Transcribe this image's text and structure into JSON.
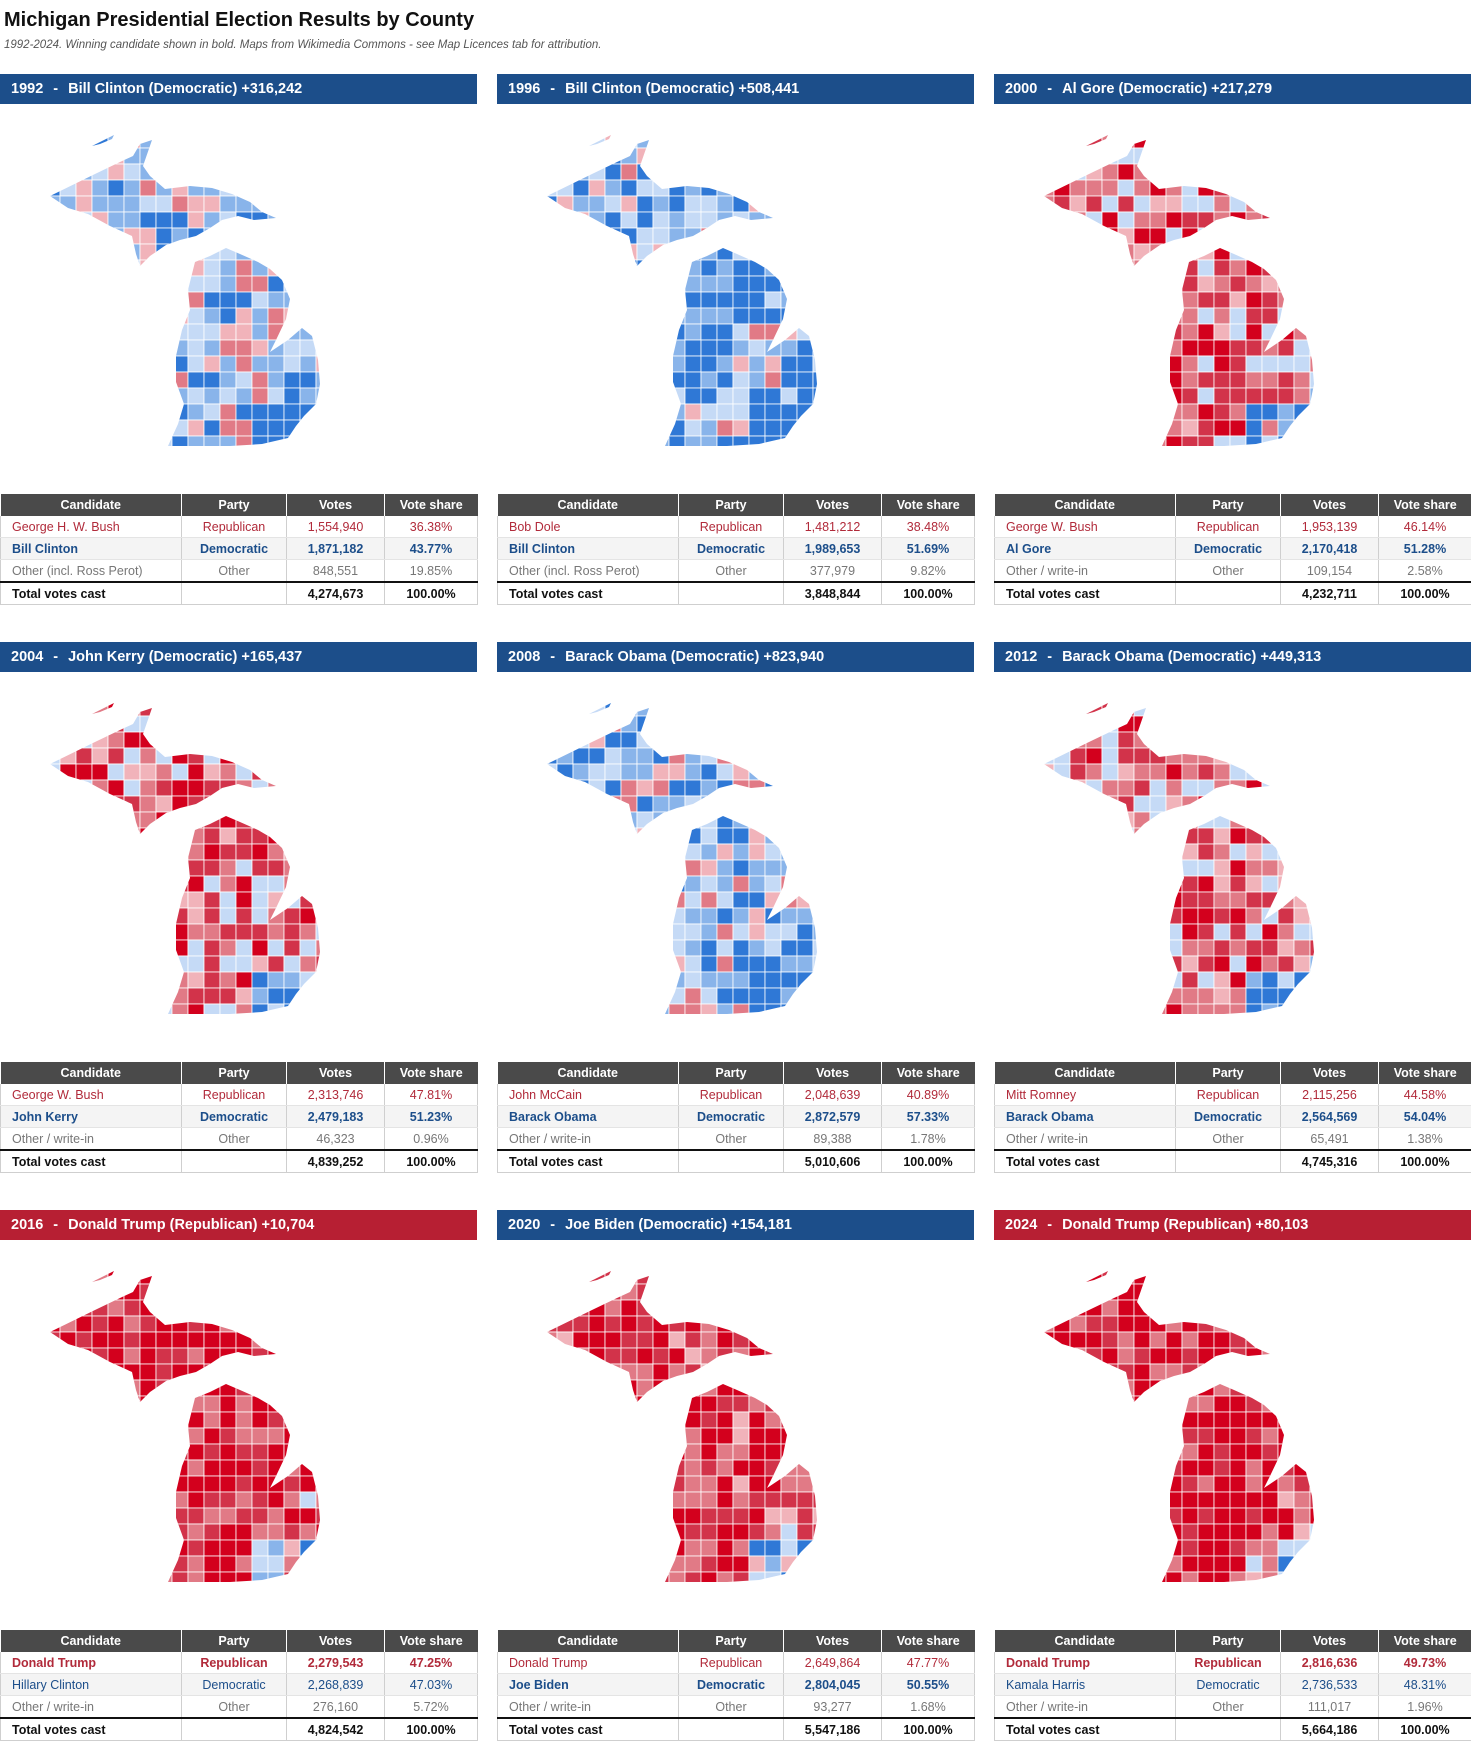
{
  "page": {
    "title": "Michigan Presidential Election Results by County",
    "subtitle": "1992-2024. Winning candidate shown in bold. Maps from Wikimedia Commons - see Map Licences tab for attribution."
  },
  "columns": [
    "Candidate",
    "Party",
    "Votes",
    "Vote share"
  ],
  "total_label": "Total votes cast",
  "colors": {
    "dem_banner": "#1c4e8a",
    "rep_banner": "#b71f33",
    "header_bg": "#4a4a4a",
    "rep_text": "#b12a3a",
    "dem_text": "#1c4e8a"
  },
  "elections": [
    {
      "year": "1992",
      "winner_party": "dem",
      "headline": "Bill Clinton (Democratic) +316,242",
      "map_bias": -0.25,
      "rows": [
        {
          "candidate": "George H. W. Bush",
          "party": "Republican",
          "votes": "1,554,940",
          "share": "36.38%",
          "type": "rep",
          "winner": false
        },
        {
          "candidate": "Bill Clinton",
          "party": "Democratic",
          "votes": "1,871,182",
          "share": "43.77%",
          "type": "dem",
          "winner": true
        },
        {
          "candidate": "Other (incl. Ross Perot)",
          "party": "Other",
          "votes": "848,551",
          "share": "19.85%",
          "type": "other",
          "winner": false
        }
      ],
      "total_votes": "4,274,673",
      "total_share": "100.00%"
    },
    {
      "year": "1996",
      "winner_party": "dem",
      "headline": "Bill Clinton (Democratic) +508,441",
      "map_bias": -0.45,
      "rows": [
        {
          "candidate": "Bob Dole",
          "party": "Republican",
          "votes": "1,481,212",
          "share": "38.48%",
          "type": "rep",
          "winner": false
        },
        {
          "candidate": "Bill Clinton",
          "party": "Democratic",
          "votes": "1,989,653",
          "share": "51.69%",
          "type": "dem",
          "winner": true
        },
        {
          "candidate": "Other (incl. Ross Perot)",
          "party": "Other",
          "votes": "377,979",
          "share": "9.82%",
          "type": "other",
          "winner": false
        }
      ],
      "total_votes": "3,848,844",
      "total_share": "100.00%"
    },
    {
      "year": "2000",
      "winner_party": "dem",
      "headline": "Al Gore (Democratic) +217,279",
      "map_bias": 0.45,
      "rows": [
        {
          "candidate": "George W. Bush",
          "party": "Republican",
          "votes": "1,953,139",
          "share": "46.14%",
          "type": "rep",
          "winner": false
        },
        {
          "candidate": "Al Gore",
          "party": "Democratic",
          "votes": "2,170,418",
          "share": "51.28%",
          "type": "dem",
          "winner": true
        },
        {
          "candidate": "Other / write-in",
          "party": "Other",
          "votes": "109,154",
          "share": "2.58%",
          "type": "other",
          "winner": false
        }
      ],
      "total_votes": "4,232,711",
      "total_share": "100.00%"
    },
    {
      "year": "2004",
      "winner_party": "dem",
      "headline": "John Kerry (Democratic) +165,437",
      "map_bias": 0.4,
      "rows": [
        {
          "candidate": "George W. Bush",
          "party": "Republican",
          "votes": "2,313,746",
          "share": "47.81%",
          "type": "rep",
          "winner": false
        },
        {
          "candidate": "John Kerry",
          "party": "Democratic",
          "votes": "2,479,183",
          "share": "51.23%",
          "type": "dem",
          "winner": true
        },
        {
          "candidate": "Other / write-in",
          "party": "Other",
          "votes": "46,323",
          "share": "0.96%",
          "type": "other",
          "winner": false
        }
      ],
      "total_votes": "4,839,252",
      "total_share": "100.00%"
    },
    {
      "year": "2008",
      "winner_party": "dem",
      "headline": "Barack Obama (Democratic) +823,940",
      "map_bias": -0.35,
      "rows": [
        {
          "candidate": "John McCain",
          "party": "Republican",
          "votes": "2,048,639",
          "share": "40.89%",
          "type": "rep",
          "winner": false
        },
        {
          "candidate": "Barack Obama",
          "party": "Democratic",
          "votes": "2,872,579",
          "share": "57.33%",
          "type": "dem",
          "winner": true
        },
        {
          "candidate": "Other / write-in",
          "party": "Other",
          "votes": "89,388",
          "share": "1.78%",
          "type": "other",
          "winner": false
        }
      ],
      "total_votes": "5,010,606",
      "total_share": "100.00%"
    },
    {
      "year": "2012",
      "winner_party": "dem",
      "headline": "Barack Obama (Democratic) +449,313",
      "map_bias": 0.4,
      "rows": [
        {
          "candidate": "Mitt Romney",
          "party": "Republican",
          "votes": "2,115,256",
          "share": "44.58%",
          "type": "rep",
          "winner": false
        },
        {
          "candidate": "Barack Obama",
          "party": "Democratic",
          "votes": "2,564,569",
          "share": "54.04%",
          "type": "dem",
          "winner": true
        },
        {
          "candidate": "Other / write-in",
          "party": "Other",
          "votes": "65,491",
          "share": "1.38%",
          "type": "other",
          "winner": false
        }
      ],
      "total_votes": "4,745,316",
      "total_share": "100.00%"
    },
    {
      "year": "2016",
      "winner_party": "rep",
      "headline": "Donald Trump (Republican) +10,704",
      "map_bias": 0.8,
      "rows": [
        {
          "candidate": "Donald Trump",
          "party": "Republican",
          "votes": "2,279,543",
          "share": "47.25%",
          "type": "rep",
          "winner": true
        },
        {
          "candidate": "Hillary Clinton",
          "party": "Democratic",
          "votes": "2,268,839",
          "share": "47.03%",
          "type": "dem",
          "winner": false
        },
        {
          "candidate": "Other / write-in",
          "party": "Other",
          "votes": "276,160",
          "share": "5.72%",
          "type": "other",
          "winner": false
        }
      ],
      "total_votes": "4,824,542",
      "total_share": "100.00%"
    },
    {
      "year": "2020",
      "winner_party": "dem",
      "headline": "Joe Biden (Democratic) +154,181",
      "map_bias": 0.75,
      "rows": [
        {
          "candidate": "Donald Trump",
          "party": "Republican",
          "votes": "2,649,864",
          "share": "47.77%",
          "type": "rep",
          "winner": false
        },
        {
          "candidate": "Joe Biden",
          "party": "Democratic",
          "votes": "2,804,045",
          "share": "50.55%",
          "type": "dem",
          "winner": true
        },
        {
          "candidate": "Other / write-in",
          "party": "Other",
          "votes": "93,277",
          "share": "1.68%",
          "type": "other",
          "winner": false
        }
      ],
      "total_votes": "5,547,186",
      "total_share": "100.00%"
    },
    {
      "year": "2024",
      "winner_party": "rep",
      "headline": "Donald Trump (Republican) +80,103",
      "map_bias": 0.85,
      "rows": [
        {
          "candidate": "Donald Trump",
          "party": "Republican",
          "votes": "2,816,636",
          "share": "49.73%",
          "type": "rep",
          "winner": true
        },
        {
          "candidate": "Kamala Harris",
          "party": "Democratic",
          "votes": "2,736,533",
          "share": "48.31%",
          "type": "dem",
          "winner": false
        },
        {
          "candidate": "Other / write-in",
          "party": "Other",
          "votes": "111,017",
          "share": "1.96%",
          "type": "other",
          "winner": false
        }
      ],
      "total_votes": "5,664,186",
      "total_share": "100.00%"
    }
  ]
}
